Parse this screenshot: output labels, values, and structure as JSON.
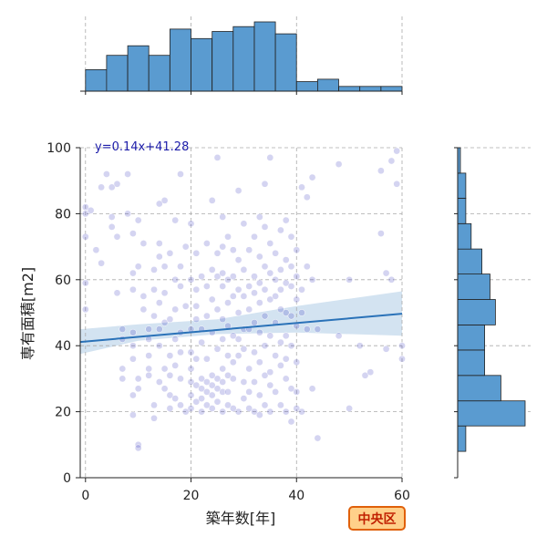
{
  "chart_data": {
    "type": "scatter",
    "title": "",
    "xlabel": "築年数[年]",
    "ylabel": "専有面積[m2]",
    "xlim": [
      -1,
      60
    ],
    "ylim": [
      0,
      100
    ],
    "xticks": [
      0,
      20,
      40,
      60
    ],
    "yticks": [
      0,
      20,
      40,
      60,
      80,
      100
    ],
    "grid": true,
    "regression": {
      "label": "y=0.14x+41.28",
      "slope": 0.14,
      "intercept": 41.28,
      "ci_band": [
        [
          -1,
          37.5,
          45.0
        ],
        [
          10,
          41.5,
          46.5
        ],
        [
          25,
          43.5,
          48.0
        ],
        [
          40,
          44.0,
          52.0
        ],
        [
          60,
          43.0,
          56.5
        ]
      ]
    },
    "badge": "中央区",
    "colors": {
      "point": "#3b3bbf",
      "hist": "#5a9bd0",
      "line": "#2a72b8",
      "band": "#9ec2e0",
      "badge_fill": "#ffd08a",
      "badge_border": "#e0600a",
      "badge_text": "#c02000",
      "equation": "#1a1aa8"
    },
    "x_hist": {
      "bin_edges": [
        0,
        4,
        8,
        12,
        16,
        20,
        24,
        28,
        32,
        36,
        40,
        44,
        48,
        52,
        56,
        60
      ],
      "counts": [
        9,
        15,
        19,
        15,
        26,
        22,
        25,
        27,
        29,
        24,
        4,
        5,
        2,
        2,
        2
      ]
    },
    "y_hist": {
      "bin_edges": [
        8,
        15.7,
        23.3,
        31,
        38.7,
        46.3,
        54,
        61.7,
        69.3,
        77,
        84.7,
        92.3,
        100
      ],
      "counts": [
        3,
        25,
        16,
        10,
        10,
        14,
        12,
        9,
        5,
        3,
        3,
        1
      ]
    },
    "points": [
      [
        0,
        82
      ],
      [
        0,
        80
      ],
      [
        0,
        73
      ],
      [
        0,
        59
      ],
      [
        0,
        51
      ],
      [
        1,
        81
      ],
      [
        2,
        69
      ],
      [
        3,
        88
      ],
      [
        3,
        65
      ],
      [
        4,
        92
      ],
      [
        5,
        88
      ],
      [
        5,
        79
      ],
      [
        5,
        76
      ],
      [
        6,
        89
      ],
      [
        6,
        73
      ],
      [
        6,
        56
      ],
      [
        7,
        45
      ],
      [
        7,
        42
      ],
      [
        7,
        33
      ],
      [
        7,
        30
      ],
      [
        8,
        92
      ],
      [
        8,
        80
      ],
      [
        9,
        74
      ],
      [
        9,
        62
      ],
      [
        9,
        57
      ],
      [
        9,
        44
      ],
      [
        9,
        40
      ],
      [
        9,
        36
      ],
      [
        9,
        25
      ],
      [
        9,
        19
      ],
      [
        10,
        10
      ],
      [
        10,
        9
      ],
      [
        10,
        27
      ],
      [
        10,
        30
      ],
      [
        10,
        64
      ],
      [
        10,
        78
      ],
      [
        11,
        71
      ],
      [
        11,
        55
      ],
      [
        11,
        51
      ],
      [
        12,
        45
      ],
      [
        12,
        42
      ],
      [
        12,
        37
      ],
      [
        12,
        33
      ],
      [
        12,
        31
      ],
      [
        13,
        63
      ],
      [
        13,
        57
      ],
      [
        13,
        49
      ],
      [
        13,
        22
      ],
      [
        13,
        18
      ],
      [
        14,
        83
      ],
      [
        14,
        71
      ],
      [
        14,
        67
      ],
      [
        14,
        53
      ],
      [
        14,
        45
      ],
      [
        14,
        40
      ],
      [
        14,
        29
      ],
      [
        15,
        84
      ],
      [
        15,
        64
      ],
      [
        15,
        56
      ],
      [
        15,
        47
      ],
      [
        15,
        33
      ],
      [
        15,
        27
      ],
      [
        16,
        68
      ],
      [
        16,
        48
      ],
      [
        16,
        37
      ],
      [
        16,
        31
      ],
      [
        16,
        25
      ],
      [
        16,
        21
      ],
      [
        17,
        78
      ],
      [
        17,
        60
      ],
      [
        17,
        51
      ],
      [
        17,
        42
      ],
      [
        17,
        34
      ],
      [
        17,
        24
      ],
      [
        18,
        92
      ],
      [
        18,
        64
      ],
      [
        18,
        58
      ],
      [
        18,
        44
      ],
      [
        18,
        38
      ],
      [
        18,
        30
      ],
      [
        18,
        22
      ],
      [
        19,
        70
      ],
      [
        19,
        52
      ],
      [
        19,
        20
      ],
      [
        20,
        77
      ],
      [
        20,
        60
      ],
      [
        20,
        45
      ],
      [
        20,
        38
      ],
      [
        20,
        33
      ],
      [
        20,
        29
      ],
      [
        20,
        25
      ],
      [
        20,
        21
      ],
      [
        21,
        68
      ],
      [
        21,
        57
      ],
      [
        21,
        52
      ],
      [
        21,
        48
      ],
      [
        21,
        36
      ],
      [
        21,
        28
      ],
      [
        21,
        23
      ],
      [
        22,
        61
      ],
      [
        22,
        45
      ],
      [
        22,
        41
      ],
      [
        22,
        30
      ],
      [
        22,
        27
      ],
      [
        22,
        24
      ],
      [
        22,
        20
      ],
      [
        23,
        71
      ],
      [
        23,
        58
      ],
      [
        23,
        49
      ],
      [
        23,
        36
      ],
      [
        23,
        29
      ],
      [
        23,
        26
      ],
      [
        23,
        22
      ],
      [
        24,
        84
      ],
      [
        24,
        63
      ],
      [
        24,
        54
      ],
      [
        24,
        44
      ],
      [
        24,
        31
      ],
      [
        24,
        28
      ],
      [
        24,
        25
      ],
      [
        24,
        21
      ],
      [
        25,
        97
      ],
      [
        25,
        68
      ],
      [
        25,
        61
      ],
      [
        25,
        51
      ],
      [
        25,
        39
      ],
      [
        25,
        30
      ],
      [
        25,
        27
      ],
      [
        25,
        23
      ],
      [
        26,
        79
      ],
      [
        26,
        70
      ],
      [
        26,
        62
      ],
      [
        26,
        58
      ],
      [
        26,
        48
      ],
      [
        26,
        42
      ],
      [
        26,
        33
      ],
      [
        26,
        29
      ],
      [
        26,
        26
      ],
      [
        26,
        20
      ],
      [
        27,
        73
      ],
      [
        27,
        60
      ],
      [
        27,
        53
      ],
      [
        27,
        46
      ],
      [
        27,
        37
      ],
      [
        27,
        31
      ],
      [
        27,
        26
      ],
      [
        27,
        22
      ],
      [
        28,
        69
      ],
      [
        28,
        61
      ],
      [
        28,
        55
      ],
      [
        28,
        43
      ],
      [
        28,
        35
      ],
      [
        28,
        30
      ],
      [
        28,
        21
      ],
      [
        29,
        87
      ],
      [
        29,
        66
      ],
      [
        29,
        57
      ],
      [
        29,
        50
      ],
      [
        29,
        42
      ],
      [
        29,
        37
      ],
      [
        29,
        20
      ],
      [
        30,
        77
      ],
      [
        30,
        63
      ],
      [
        30,
        55
      ],
      [
        30,
        45
      ],
      [
        30,
        39
      ],
      [
        30,
        29
      ],
      [
        30,
        24
      ],
      [
        31,
        69
      ],
      [
        31,
        58
      ],
      [
        31,
        51
      ],
      [
        31,
        45
      ],
      [
        31,
        33
      ],
      [
        31,
        26
      ],
      [
        31,
        21
      ],
      [
        32,
        73
      ],
      [
        32,
        61
      ],
      [
        32,
        56
      ],
      [
        32,
        47
      ],
      [
        32,
        38
      ],
      [
        32,
        29
      ],
      [
        32,
        20
      ],
      [
        33,
        79
      ],
      [
        33,
        67
      ],
      [
        33,
        59
      ],
      [
        33,
        53
      ],
      [
        33,
        44
      ],
      [
        33,
        35
      ],
      [
        33,
        25
      ],
      [
        33,
        19
      ],
      [
        34,
        89
      ],
      [
        34,
        76
      ],
      [
        34,
        64
      ],
      [
        34,
        57
      ],
      [
        34,
        49
      ],
      [
        34,
        40
      ],
      [
        34,
        31
      ],
      [
        34,
        22
      ],
      [
        35,
        97
      ],
      [
        35,
        71
      ],
      [
        35,
        62
      ],
      [
        35,
        54
      ],
      [
        35,
        43
      ],
      [
        35,
        32
      ],
      [
        35,
        28
      ],
      [
        35,
        20
      ],
      [
        36,
        68
      ],
      [
        36,
        60
      ],
      [
        36,
        55
      ],
      [
        36,
        47
      ],
      [
        36,
        37
      ],
      [
        36,
        26
      ],
      [
        37,
        75
      ],
      [
        37,
        63
      ],
      [
        37,
        57
      ],
      [
        37,
        51
      ],
      [
        37,
        41
      ],
      [
        37,
        34
      ],
      [
        37,
        22
      ],
      [
        38,
        78
      ],
      [
        38,
        66
      ],
      [
        38,
        59
      ],
      [
        38,
        50
      ],
      [
        38,
        43
      ],
      [
        38,
        36
      ],
      [
        38,
        30
      ],
      [
        38,
        20
      ],
      [
        39,
        73
      ],
      [
        39,
        64
      ],
      [
        39,
        58
      ],
      [
        39,
        49
      ],
      [
        39,
        40
      ],
      [
        39,
        27
      ],
      [
        39,
        17
      ],
      [
        40,
        69
      ],
      [
        40,
        61
      ],
      [
        40,
        54
      ],
      [
        40,
        46
      ],
      [
        40,
        35
      ],
      [
        40,
        26
      ],
      [
        40,
        21
      ],
      [
        41,
        88
      ],
      [
        41,
        57
      ],
      [
        41,
        50
      ],
      [
        41,
        20
      ],
      [
        42,
        85
      ],
      [
        42,
        64
      ],
      [
        42,
        45
      ],
      [
        43,
        91
      ],
      [
        43,
        60
      ],
      [
        43,
        27
      ],
      [
        44,
        45
      ],
      [
        44,
        12
      ],
      [
        48,
        95
      ],
      [
        48,
        43
      ],
      [
        50,
        60
      ],
      [
        50,
        21
      ],
      [
        52,
        40
      ],
      [
        53,
        31
      ],
      [
        54,
        32
      ],
      [
        56,
        93
      ],
      [
        56,
        74
      ],
      [
        57,
        62
      ],
      [
        57,
        39
      ],
      [
        58,
        96
      ],
      [
        58,
        60
      ],
      [
        59,
        99
      ],
      [
        59,
        89
      ],
      [
        60,
        40
      ],
      [
        60,
        36
      ]
    ]
  }
}
